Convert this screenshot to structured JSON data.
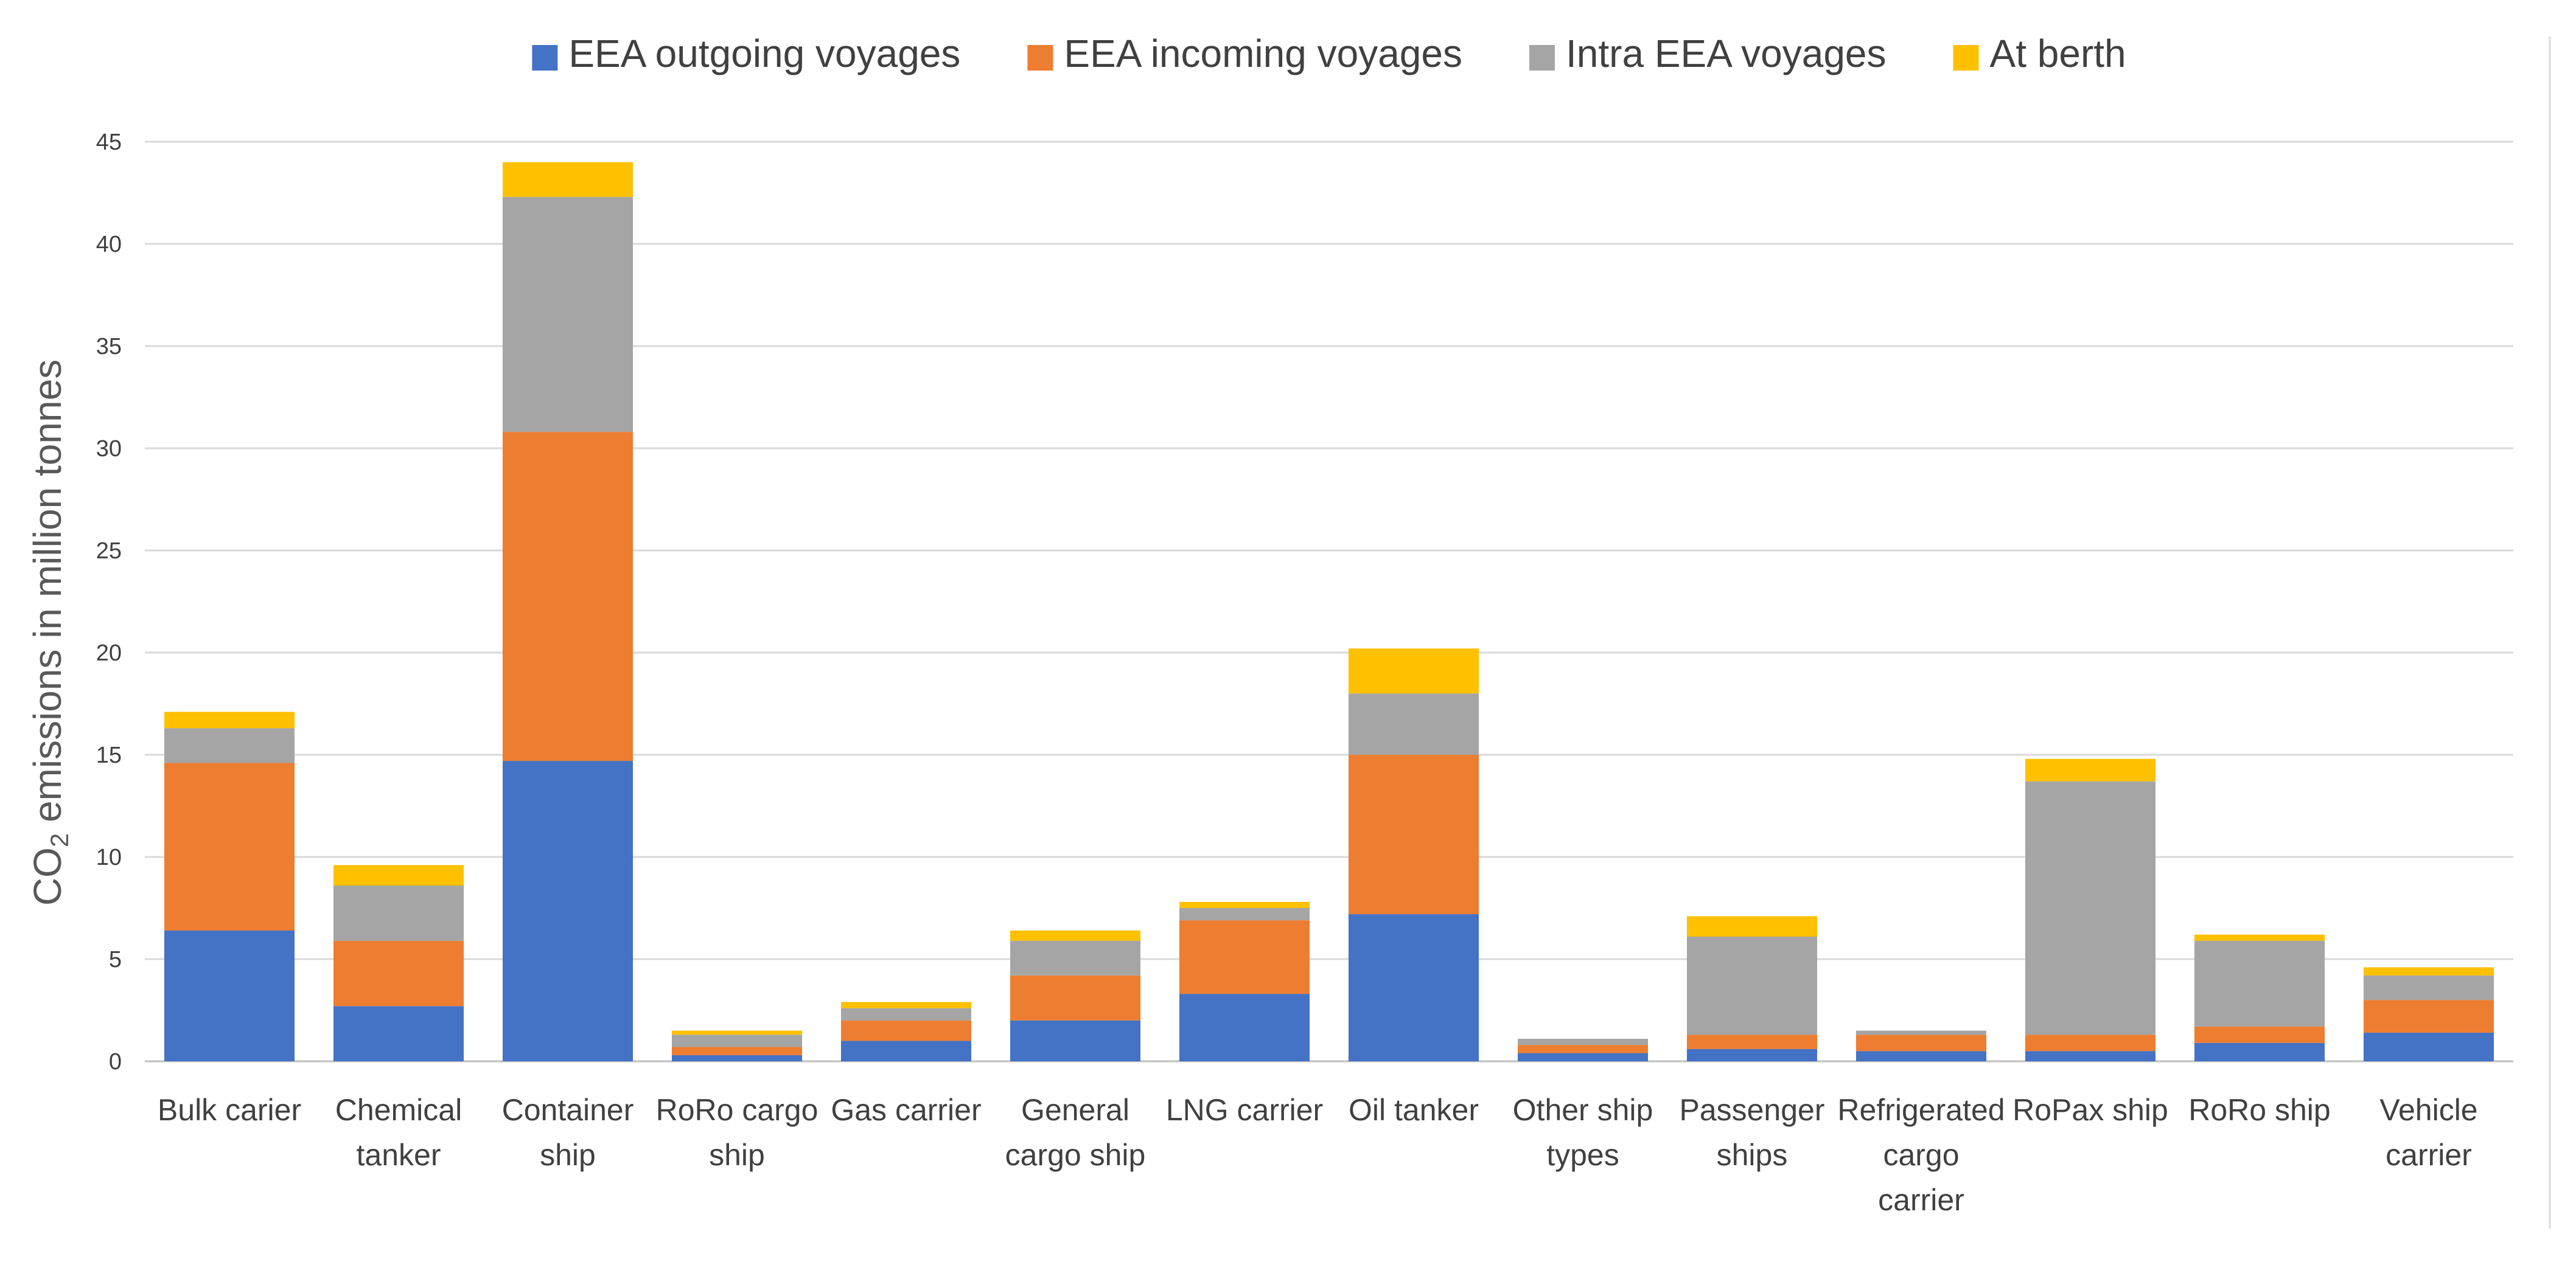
{
  "chart_data": {
    "type": "bar",
    "stacked": true,
    "title": "",
    "xlabel": "",
    "ylabel": {
      "prefix": "CO",
      "subscript": "2",
      "suffix": " emissions in million tonnes"
    },
    "ylim": [
      0,
      45
    ],
    "yticks": [
      "0",
      "5",
      "10",
      "15",
      "20",
      "25",
      "30",
      "35",
      "40",
      "45"
    ],
    "grid": true,
    "legend_position": "top-center",
    "categories": [
      [
        "Bulk carier"
      ],
      [
        "Chemical",
        "tanker"
      ],
      [
        "Container",
        "ship"
      ],
      [
        "RoRo cargo",
        "ship"
      ],
      [
        "Gas carrier"
      ],
      [
        "General",
        "cargo ship"
      ],
      [
        "LNG carrier"
      ],
      [
        "Oil tanker"
      ],
      [
        "Other ship",
        "types"
      ],
      [
        "Passenger",
        "ships"
      ],
      [
        "Refrigerated",
        "cargo",
        "carrier"
      ],
      [
        "RoPax ship"
      ],
      [
        "RoRo ship"
      ],
      [
        "Vehicle",
        "carrier"
      ]
    ],
    "series": [
      {
        "name": "EEA outgoing voyages",
        "color": "#4472C4",
        "values": [
          6.4,
          2.7,
          14.7,
          0.3,
          1.0,
          2.0,
          3.3,
          7.2,
          0.4,
          0.6,
          0.5,
          0.5,
          0.9,
          1.4
        ]
      },
      {
        "name": "EEA incoming voyages",
        "color": "#ED7D31",
        "values": [
          8.2,
          3.2,
          16.1,
          0.4,
          1.0,
          2.2,
          3.6,
          7.8,
          0.4,
          0.7,
          0.8,
          0.8,
          0.8,
          1.6
        ]
      },
      {
        "name": "Intra EEA voyages",
        "color": "#A5A5A5",
        "values": [
          1.7,
          2.7,
          11.5,
          0.6,
          0.6,
          1.7,
          0.6,
          3.0,
          0.3,
          4.8,
          0.2,
          12.4,
          4.2,
          1.2
        ]
      },
      {
        "name": "At berth",
        "color": "#FFC000",
        "values": [
          0.8,
          1.0,
          1.7,
          0.2,
          0.3,
          0.5,
          0.3,
          2.2,
          0.0,
          1.0,
          0.0,
          1.1,
          0.3,
          0.4
        ]
      }
    ]
  }
}
